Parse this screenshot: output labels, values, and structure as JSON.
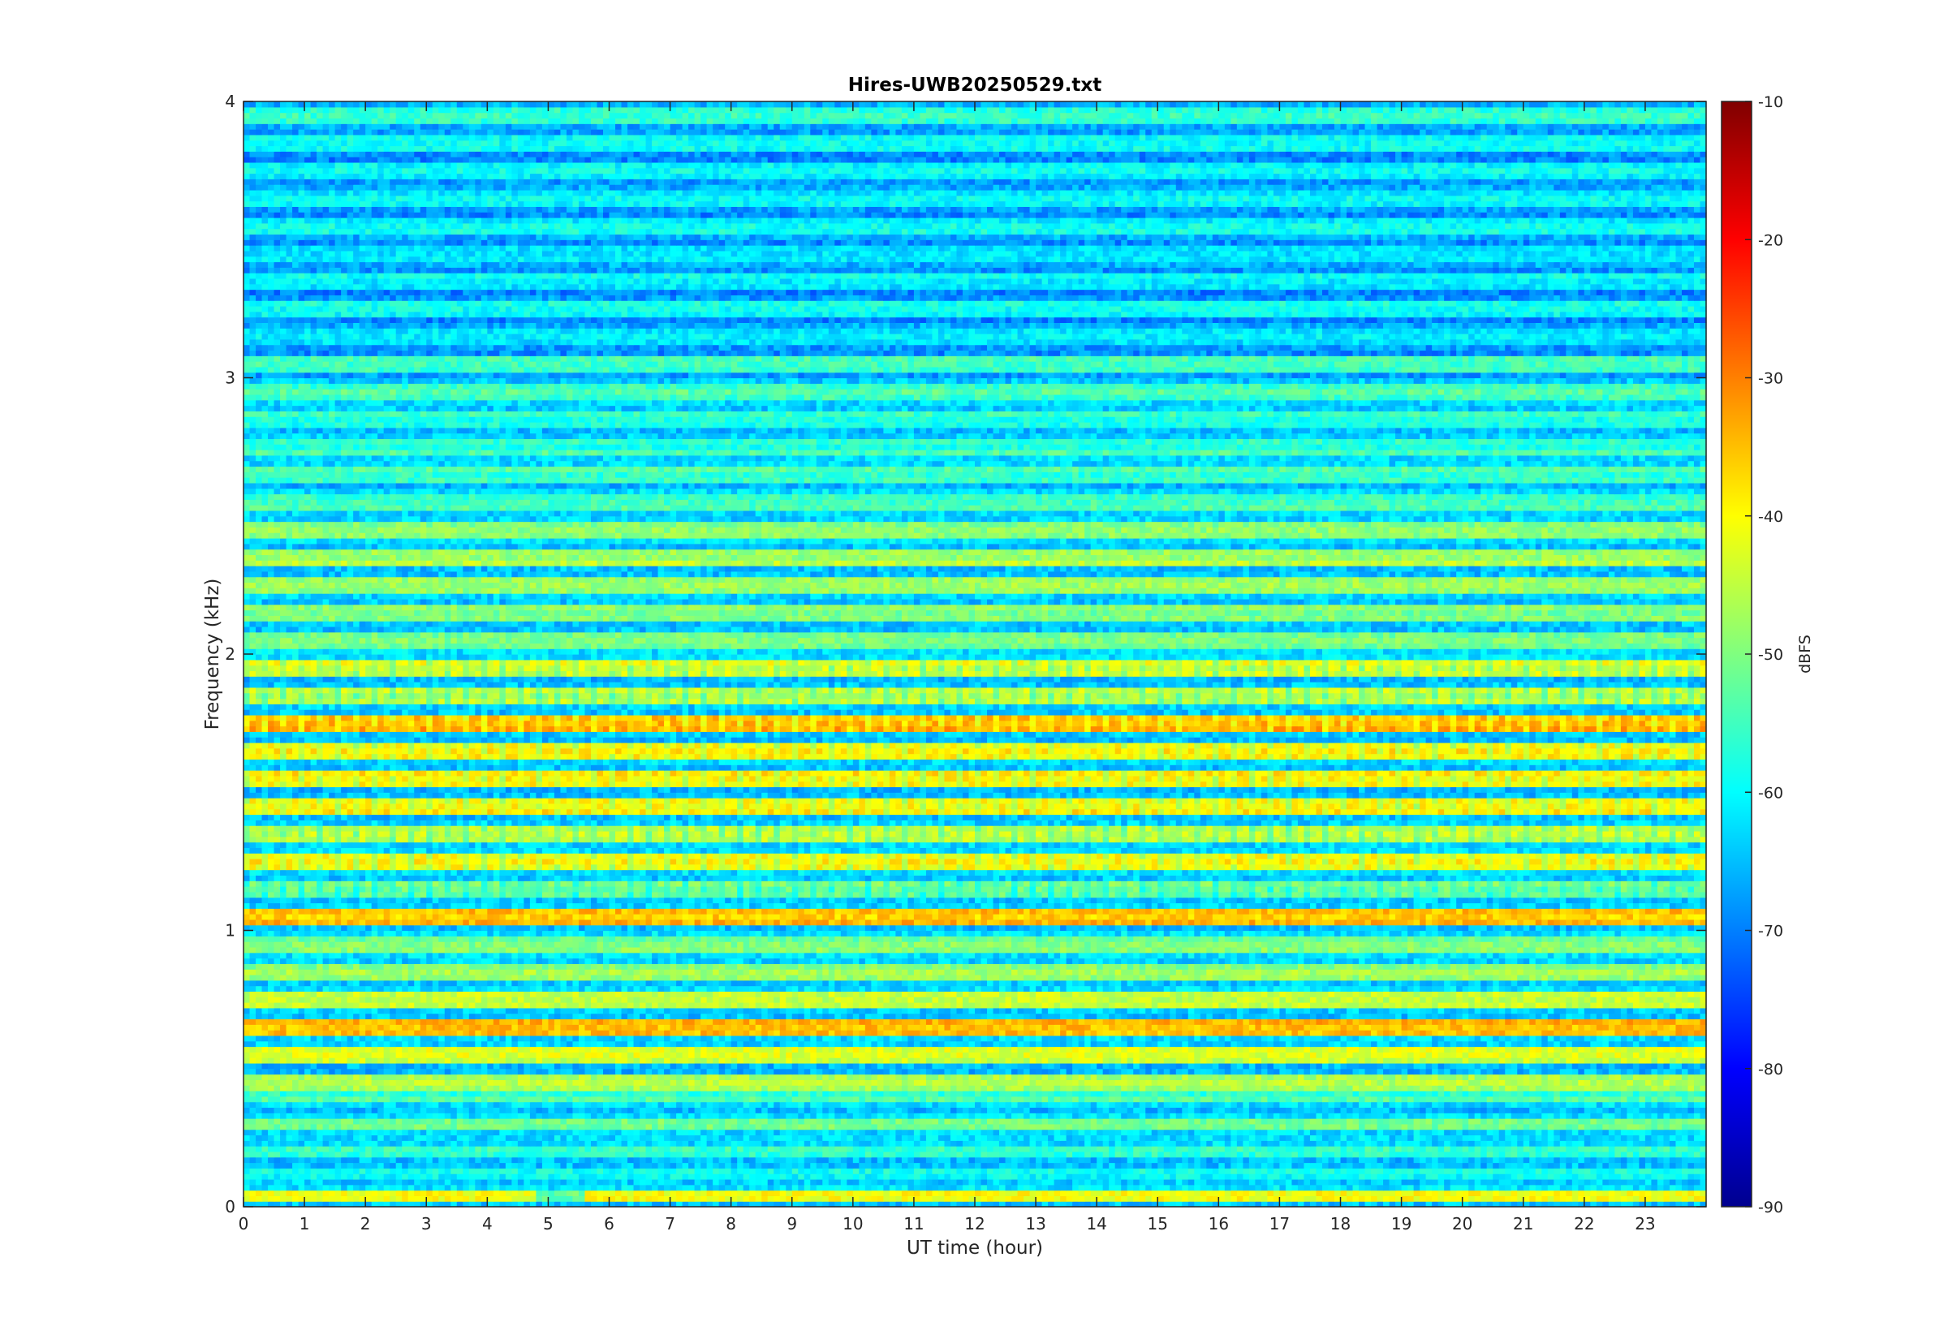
{
  "chart_data": {
    "type": "heatmap",
    "title": "Hires-UWB20250529.txt",
    "xlabel": "UT time (hour)",
    "ylabel": "Frequency (kHz)",
    "xlim": [
      0,
      24
    ],
    "ylim": [
      0,
      4
    ],
    "x_ticks": [
      "0",
      "1",
      "2",
      "3",
      "4",
      "5",
      "6",
      "7",
      "8",
      "9",
      "10",
      "11",
      "12",
      "13",
      "14",
      "15",
      "16",
      "17",
      "18",
      "19",
      "20",
      "21",
      "22",
      "23"
    ],
    "y_ticks": [
      "0",
      "1",
      "2",
      "3",
      "4"
    ],
    "colorbar": {
      "label": "dBFS",
      "range": [
        -90,
        -10
      ],
      "ticks": [
        "-90",
        "-80",
        "-70",
        "-60",
        "-50",
        "-40",
        "-30",
        "-20",
        "-10"
      ],
      "colormap": "jet"
    },
    "freq_bands_khz": [
      {
        "f": 0.04,
        "level": -42,
        "note": "strong band, weaker near 4.8-5.6 h"
      },
      {
        "f": 0.12,
        "level": -58
      },
      {
        "f": 0.2,
        "level": -56
      },
      {
        "f": 0.3,
        "level": -52
      },
      {
        "f": 0.4,
        "level": -55
      },
      {
        "f": 0.45,
        "level": -46
      },
      {
        "f": 0.55,
        "level": -44
      },
      {
        "f": 0.65,
        "level": -34
      },
      {
        "f": 0.75,
        "level": -46
      },
      {
        "f": 0.85,
        "level": -48
      },
      {
        "f": 0.95,
        "level": -50
      },
      {
        "f": 1.05,
        "level": -36
      },
      {
        "f": 1.15,
        "level": -50
      },
      {
        "f": 1.25,
        "level": -40
      },
      {
        "f": 1.35,
        "level": -45
      },
      {
        "f": 1.45,
        "level": -40
      },
      {
        "f": 1.55,
        "level": -38
      },
      {
        "f": 1.65,
        "level": -40
      },
      {
        "f": 1.75,
        "level": -34
      },
      {
        "f": 1.85,
        "level": -46
      },
      {
        "f": 1.95,
        "level": -43
      },
      {
        "f": 2.05,
        "level": -50
      },
      {
        "f": 2.15,
        "level": -50
      },
      {
        "f": 2.25,
        "level": -48
      },
      {
        "f": 2.35,
        "level": -47
      },
      {
        "f": 2.45,
        "level": -48
      },
      {
        "f": 2.55,
        "level": -54
      },
      {
        "f": 2.65,
        "level": -55
      },
      {
        "f": 2.75,
        "level": -56
      },
      {
        "f": 2.85,
        "level": -57
      },
      {
        "f": 2.95,
        "level": -54
      },
      {
        "f": 3.05,
        "level": -56
      },
      {
        "f": 3.15,
        "level": -62
      },
      {
        "f": 3.25,
        "level": -60
      },
      {
        "f": 3.35,
        "level": -60
      },
      {
        "f": 3.45,
        "level": -62
      },
      {
        "f": 3.55,
        "level": -60
      },
      {
        "f": 3.65,
        "level": -61
      },
      {
        "f": 3.75,
        "level": -60
      },
      {
        "f": 3.85,
        "level": -60
      },
      {
        "f": 3.95,
        "level": -56
      }
    ],
    "background_level": -64
  }
}
